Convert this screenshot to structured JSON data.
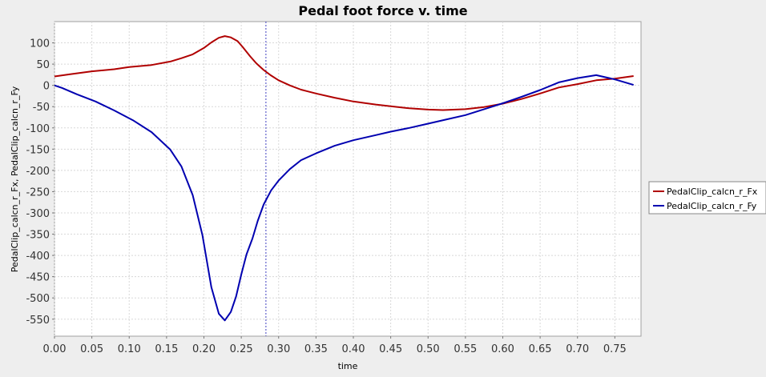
{
  "chart_data": {
    "type": "line",
    "title": "Pedal foot force v. time",
    "xlabel": "time",
    "ylabel": "PedalClip_calcn_r_Fx, PedalClip_calcn_r_Fy",
    "xlim": [
      0.0,
      0.785
    ],
    "ylim": [
      -590,
      150
    ],
    "x_ticks": [
      "0.00",
      "0.05",
      "0.10",
      "0.15",
      "0.20",
      "0.25",
      "0.30",
      "0.35",
      "0.40",
      "0.45",
      "0.50",
      "0.55",
      "0.60",
      "0.65",
      "0.70",
      "0.75"
    ],
    "x_tick_values": [
      0.0,
      0.05,
      0.1,
      0.15,
      0.2,
      0.25,
      0.3,
      0.35,
      0.4,
      0.45,
      0.5,
      0.55,
      0.6,
      0.65,
      0.7,
      0.75
    ],
    "y_ticks": [
      "100",
      "50",
      "0",
      "-50",
      "-100",
      "-150",
      "-200",
      "-250",
      "-300",
      "-350",
      "-400",
      "-450",
      "-500",
      "-550"
    ],
    "y_tick_values": [
      100,
      50,
      0,
      -50,
      -100,
      -150,
      -200,
      -250,
      -300,
      -350,
      -400,
      -450,
      -500,
      -550
    ],
    "grid": true,
    "legend_position": "right",
    "marker_x": 0.283,
    "series": [
      {
        "name": "PedalClip_calcn_r_Fx",
        "color": "#b00000",
        "points": [
          [
            0.0,
            21
          ],
          [
            0.02,
            26
          ],
          [
            0.05,
            33
          ],
          [
            0.08,
            38
          ],
          [
            0.1,
            43
          ],
          [
            0.13,
            48
          ],
          [
            0.155,
            56
          ],
          [
            0.17,
            64
          ],
          [
            0.185,
            73
          ],
          [
            0.2,
            88
          ],
          [
            0.21,
            101
          ],
          [
            0.22,
            112
          ],
          [
            0.228,
            116
          ],
          [
            0.236,
            113
          ],
          [
            0.245,
            104
          ],
          [
            0.252,
            90
          ],
          [
            0.262,
            68
          ],
          [
            0.27,
            52
          ],
          [
            0.28,
            36
          ],
          [
            0.29,
            23
          ],
          [
            0.3,
            12
          ],
          [
            0.315,
            0
          ],
          [
            0.33,
            -10
          ],
          [
            0.35,
            -19
          ],
          [
            0.375,
            -29
          ],
          [
            0.4,
            -38
          ],
          [
            0.43,
            -45
          ],
          [
            0.45,
            -49
          ],
          [
            0.475,
            -54
          ],
          [
            0.5,
            -57
          ],
          [
            0.52,
            -58
          ],
          [
            0.55,
            -56
          ],
          [
            0.575,
            -51
          ],
          [
            0.6,
            -43
          ],
          [
            0.625,
            -32
          ],
          [
            0.65,
            -19
          ],
          [
            0.675,
            -5
          ],
          [
            0.7,
            3
          ],
          [
            0.725,
            12
          ],
          [
            0.75,
            16
          ],
          [
            0.775,
            22
          ]
        ]
      },
      {
        "name": "PedalClip_calcn_r_Fy",
        "color": "#0000b0",
        "points": [
          [
            0.0,
            0
          ],
          [
            0.01,
            -6
          ],
          [
            0.03,
            -21
          ],
          [
            0.055,
            -38
          ],
          [
            0.08,
            -59
          ],
          [
            0.105,
            -82
          ],
          [
            0.13,
            -110
          ],
          [
            0.155,
            -151
          ],
          [
            0.17,
            -191
          ],
          [
            0.185,
            -258
          ],
          [
            0.198,
            -352
          ],
          [
            0.21,
            -475
          ],
          [
            0.22,
            -537
          ],
          [
            0.228,
            -553
          ],
          [
            0.236,
            -533
          ],
          [
            0.243,
            -497
          ],
          [
            0.25,
            -445
          ],
          [
            0.257,
            -398
          ],
          [
            0.265,
            -360
          ],
          [
            0.272,
            -319
          ],
          [
            0.28,
            -280
          ],
          [
            0.29,
            -247
          ],
          [
            0.3,
            -224
          ],
          [
            0.315,
            -197
          ],
          [
            0.33,
            -176
          ],
          [
            0.35,
            -160
          ],
          [
            0.375,
            -142
          ],
          [
            0.4,
            -129
          ],
          [
            0.43,
            -117
          ],
          [
            0.45,
            -109
          ],
          [
            0.475,
            -100
          ],
          [
            0.5,
            -90
          ],
          [
            0.525,
            -80
          ],
          [
            0.55,
            -70
          ],
          [
            0.575,
            -56
          ],
          [
            0.6,
            -42
          ],
          [
            0.625,
            -27
          ],
          [
            0.65,
            -11
          ],
          [
            0.675,
            7
          ],
          [
            0.7,
            17
          ],
          [
            0.725,
            24
          ],
          [
            0.75,
            14
          ],
          [
            0.775,
            1
          ]
        ]
      }
    ]
  }
}
